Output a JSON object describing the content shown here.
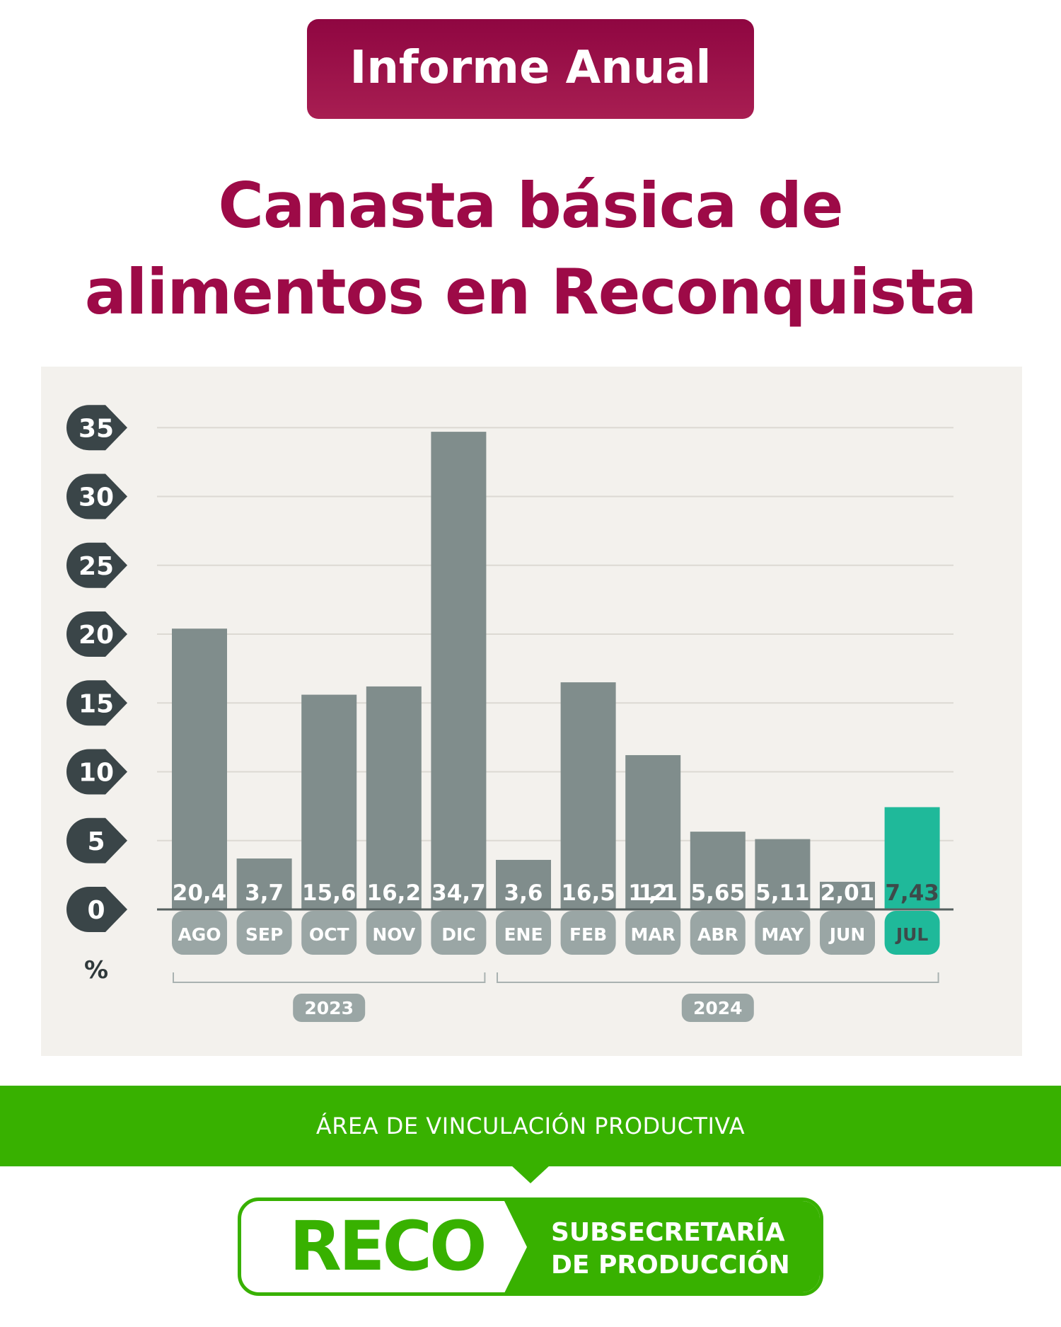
{
  "badge": "Informe Anual",
  "title": [
    "Canasta básica de",
    "alimentos en Reconquista"
  ],
  "chart_data": {
    "type": "bar",
    "categories": [
      "AGO",
      "SEP",
      "OCT",
      "NOV",
      "DIC",
      "ENE",
      "FEB",
      "MAR",
      "ABR",
      "MAY",
      "JUN",
      "JUL"
    ],
    "values": [
      20.4,
      3.7,
      15.6,
      16.2,
      34.7,
      3.6,
      16.5,
      11.21,
      5.65,
      5.11,
      2.01,
      7.43
    ],
    "value_labels": [
      "20,4",
      "3,7",
      "15,6",
      "16,2",
      "34,7",
      "3,6",
      "16,5",
      "11,21",
      "5,65",
      "5,11",
      "2,01",
      "7,43"
    ],
    "ylabel": "%",
    "ylim": [
      0,
      35
    ],
    "yticks": [
      0,
      5,
      10,
      15,
      20,
      25,
      30,
      35
    ],
    "grid": true,
    "highlight": "JUL",
    "groups": [
      {
        "label": "2023",
        "categories": [
          "AGO",
          "SEP",
          "OCT",
          "NOV",
          "DIC"
        ]
      },
      {
        "label": "2024",
        "categories": [
          "ENE",
          "FEB",
          "MAR",
          "ABR",
          "MAY",
          "JUN",
          "JUL"
        ]
      }
    ],
    "colors": {
      "bar": "#808d8c",
      "highlight": "#1fb99a",
      "value_label": "#ffffff",
      "highlight_value_label": "#3d4a4a",
      "tick_badge": "#3a4548",
      "category_box": "#9aa6a5",
      "grid": "#dcd9d3",
      "group_badge": "#9aa6a5",
      "background": "#f3f1ed"
    }
  },
  "footer": {
    "area": "ÁREA DE VINCULACIÓN PRODUCTIVA",
    "logo": "RECO",
    "subsecretaria": [
      "SUBSECRETARÍA",
      "DE PRODUCCIÓN"
    ]
  },
  "colors": {
    "title": "#9d0a47",
    "badge": "#9c0c48",
    "footer_green": "#38b100"
  }
}
